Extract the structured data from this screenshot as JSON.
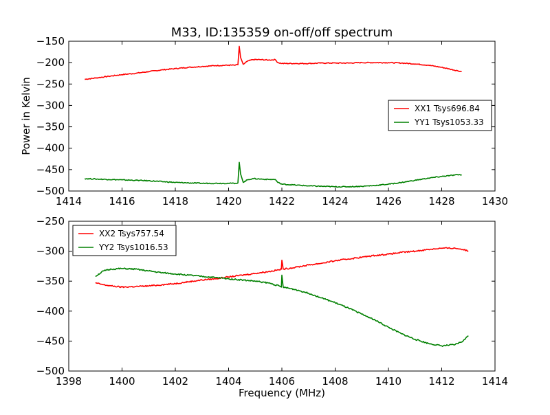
{
  "figure_title": "M33, ID:135359 on-off/off spectrum",
  "chart_data": [
    {
      "type": "line",
      "title": "M33, ID:135359 on-off/off spectrum",
      "xlabel": "",
      "ylabel": "Power in Kelvin",
      "xlim": [
        1414,
        1430
      ],
      "ylim": [
        -500,
        -150
      ],
      "xticks": [
        1414,
        1416,
        1418,
        1420,
        1422,
        1424,
        1426,
        1428,
        1430
      ],
      "yticks": [
        -500,
        -450,
        -400,
        -350,
        -300,
        -250,
        -200,
        -150
      ],
      "grid": false,
      "legend_position": "center-right",
      "series": [
        {
          "name": "XX1 Tsys696.84",
          "color": "#ff0000",
          "x": [
            1414.6,
            1415.0,
            1415.5,
            1416.0,
            1416.5,
            1417.0,
            1417.5,
            1418.0,
            1418.5,
            1419.0,
            1419.5,
            1420.0,
            1420.25,
            1420.35,
            1420.4,
            1420.45,
            1420.55,
            1420.7,
            1420.9,
            1421.2,
            1421.5,
            1421.75,
            1421.85,
            1422.0,
            1422.5,
            1423.0,
            1423.5,
            1424.0,
            1424.5,
            1425.0,
            1425.5,
            1426.0,
            1426.5,
            1427.0,
            1427.5,
            1428.0,
            1428.3,
            1428.6,
            1428.75
          ],
          "values": [
            -239,
            -236,
            -232,
            -228,
            -225,
            -221,
            -217,
            -214,
            -211,
            -209,
            -207,
            -206,
            -206,
            -205,
            -162,
            -188,
            -204,
            -197,
            -193,
            -193,
            -194,
            -193,
            -200,
            -202,
            -202,
            -202,
            -201,
            -201,
            -201,
            -200,
            -200,
            -200,
            -201,
            -203,
            -206,
            -211,
            -215,
            -219,
            -221
          ]
        },
        {
          "name": "YY1 Tsys1053.33",
          "color": "#008000",
          "x": [
            1414.6,
            1415.0,
            1415.5,
            1416.0,
            1416.5,
            1417.0,
            1417.5,
            1418.0,
            1418.5,
            1419.0,
            1419.5,
            1420.0,
            1420.25,
            1420.35,
            1420.4,
            1420.45,
            1420.55,
            1420.7,
            1420.9,
            1421.2,
            1421.5,
            1421.75,
            1421.85,
            1422.0,
            1422.5,
            1423.0,
            1423.5,
            1424.0,
            1424.5,
            1425.0,
            1425.5,
            1426.0,
            1426.5,
            1427.0,
            1427.5,
            1428.0,
            1428.3,
            1428.6,
            1428.75
          ],
          "values": [
            -471,
            -472,
            -473,
            -474,
            -475,
            -476,
            -478,
            -480,
            -481,
            -482,
            -482,
            -482,
            -482,
            -481,
            -433,
            -460,
            -480,
            -474,
            -471,
            -472,
            -473,
            -473,
            -480,
            -484,
            -486,
            -488,
            -489,
            -490,
            -490,
            -489,
            -487,
            -484,
            -480,
            -475,
            -470,
            -466,
            -464,
            -462,
            -462
          ]
        }
      ]
    },
    {
      "type": "line",
      "title": "",
      "xlabel": "Frequency (MHz)",
      "ylabel": "",
      "xlim": [
        1398,
        1414
      ],
      "ylim": [
        -500,
        -250
      ],
      "xticks": [
        1398,
        1400,
        1402,
        1404,
        1406,
        1408,
        1410,
        1412,
        1414
      ],
      "yticks": [
        -500,
        -450,
        -400,
        -350,
        -300,
        -250
      ],
      "grid": false,
      "legend_position": "top-left",
      "series": [
        {
          "name": "XX2 Tsys757.54",
          "color": "#ff0000",
          "x": [
            1399.0,
            1399.3,
            1399.6,
            1400.0,
            1400.5,
            1401.0,
            1401.5,
            1402.0,
            1402.5,
            1403.0,
            1403.5,
            1404.0,
            1404.5,
            1405.0,
            1405.5,
            1405.9,
            1405.98,
            1406.0,
            1406.05,
            1406.5,
            1407.0,
            1407.5,
            1408.0,
            1408.5,
            1409.0,
            1409.5,
            1410.0,
            1410.5,
            1411.0,
            1411.5,
            1412.0,
            1412.5,
            1412.8,
            1413.0
          ],
          "values": [
            -353,
            -356,
            -358,
            -360,
            -359,
            -358,
            -356,
            -354,
            -351,
            -348,
            -346,
            -343,
            -340,
            -337,
            -334,
            -331,
            -330,
            -315,
            -330,
            -327,
            -323,
            -320,
            -316,
            -313,
            -310,
            -307,
            -305,
            -302,
            -300,
            -297,
            -295,
            -295,
            -297,
            -300
          ]
        },
        {
          "name": "YY2 Tsys1016.53",
          "color": "#008000",
          "x": [
            1399.0,
            1399.3,
            1399.6,
            1400.0,
            1400.5,
            1401.0,
            1401.5,
            1402.0,
            1402.5,
            1403.0,
            1403.5,
            1404.0,
            1404.5,
            1405.0,
            1405.5,
            1405.9,
            1405.98,
            1406.0,
            1406.05,
            1406.5,
            1407.0,
            1407.5,
            1408.0,
            1408.5,
            1409.0,
            1409.5,
            1410.0,
            1410.5,
            1411.0,
            1411.5,
            1412.0,
            1412.5,
            1412.8,
            1413.0
          ],
          "values": [
            -342,
            -333,
            -330,
            -329,
            -330,
            -333,
            -336,
            -338,
            -340,
            -342,
            -344,
            -346,
            -348,
            -350,
            -353,
            -358,
            -360,
            -340,
            -360,
            -364,
            -370,
            -378,
            -386,
            -395,
            -405,
            -415,
            -427,
            -438,
            -447,
            -454,
            -458,
            -456,
            -450,
            -441
          ]
        }
      ]
    }
  ]
}
